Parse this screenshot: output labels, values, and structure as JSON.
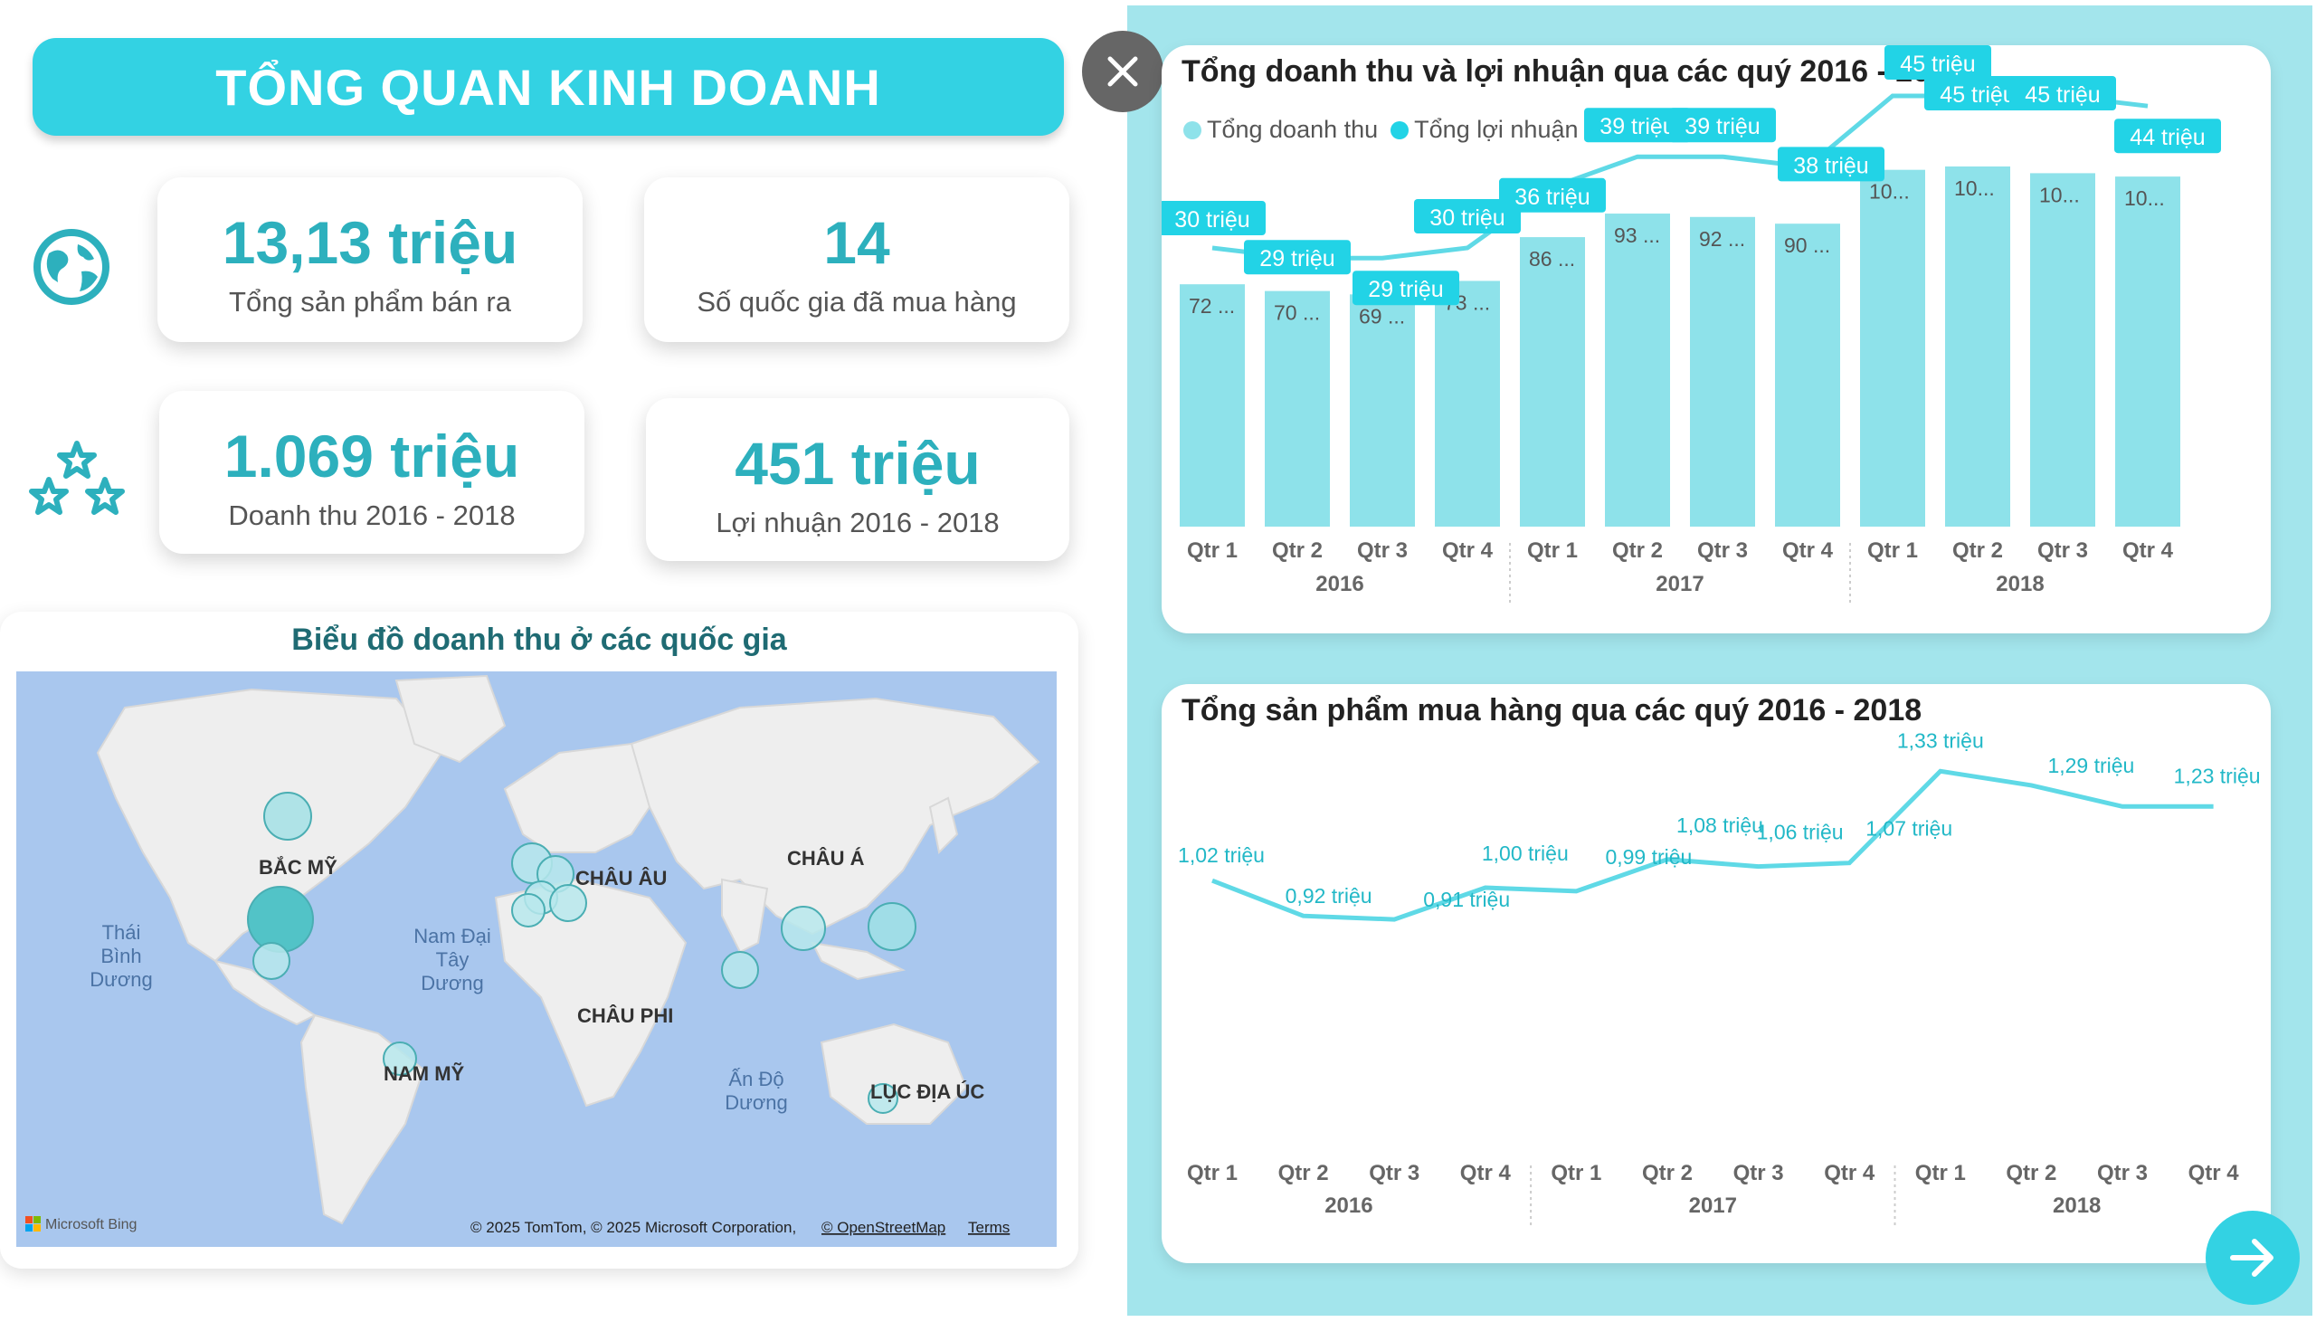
{
  "header": {
    "title": "TỔNG QUAN KINH DOANH"
  },
  "kpis": [
    {
      "value": "13,13 triệu",
      "label": "Tổng sản phẩm bán ra"
    },
    {
      "value": "14",
      "label": "Số quốc gia đã mua hàng"
    },
    {
      "value": "1.069 triệu",
      "label": "Doanh thu 2016 - 2018"
    },
    {
      "value": "451 triệu",
      "label": "Lợi nhuận 2016 - 2018"
    }
  ],
  "icons": {
    "globe": "globe-icon",
    "stars": "stars-icon",
    "close": "close-icon",
    "next": "arrow-right-icon"
  },
  "colors": {
    "accent": "#33d2e3",
    "bar": "#8ee2ea",
    "line": "#5fd9e6",
    "label_bg": "#22d3e6",
    "map_ocean": "#a9c7ee",
    "panel": "#a3e5ec"
  },
  "map": {
    "title": "Biểu đồ doanh thu ở các quốc gia",
    "labels": {
      "north_america": "BẮC MỸ",
      "europe": "CHÂU ÂU",
      "asia": "CHÂU Á",
      "africa": "CHÂU PHI",
      "south_america": "NAM MỸ",
      "australia": "LỤC ĐỊA ÚC",
      "pacific_1": "Thái",
      "pacific_2": "Bình",
      "pacific_3": "Dương",
      "atlantic_1": "Nam Đại",
      "atlantic_2": "Tây",
      "atlantic_3": "Dương",
      "indian_1": "Ấn Độ",
      "indian_2": "Dương"
    },
    "logo": "Microsoft Bing",
    "copyright": "© 2025 TomTom, © 2025 Microsoft Corporation,",
    "osm_link": "© OpenStreetMap",
    "terms_link": "Terms"
  },
  "chart_data": [
    {
      "type": "bar",
      "title": "Tổng doanh thu và lợi nhuận qua các quý 2016 - 2018",
      "legend": [
        "Tổng doanh thu",
        "Tổng lợi nhuận"
      ],
      "quarters": [
        "Qtr 1",
        "Qtr 2",
        "Qtr 3",
        "Qtr 4",
        "Qtr 1",
        "Qtr 2",
        "Qtr 3",
        "Qtr 4",
        "Qtr 1",
        "Qtr 2",
        "Qtr 3",
        "Qtr 4"
      ],
      "years": [
        "2016",
        "2017",
        "2018"
      ],
      "bar_values": [
        72,
        70,
        69,
        73,
        86,
        93,
        92,
        90,
        106,
        107,
        105,
        104
      ],
      "bar_labels": [
        "72 ...",
        "70 ...",
        "69 ...",
        "73 ...",
        "86 ...",
        "93 ...",
        "92 ...",
        "90 ...",
        "10...",
        "10...",
        "10...",
        "10..."
      ],
      "line_values": [
        30,
        29,
        29,
        30,
        36,
        39,
        39,
        38,
        45,
        45,
        45,
        44
      ],
      "line_labels": [
        "30 triệu",
        "29 triệu",
        "29 triệu",
        "30 triệu",
        "36 triệu",
        "39 triệu",
        "39 triệu",
        "38 triệu",
        "45 triệu",
        "45 triệu",
        "45 triệu",
        "44 triệu"
      ]
    },
    {
      "type": "line",
      "title": "Tổng sản phẩm mua hàng qua các quý 2016 - 2018",
      "quarters": [
        "Qtr 1",
        "Qtr 2",
        "Qtr 3",
        "Qtr 4",
        "Qtr 1",
        "Qtr 2",
        "Qtr 3",
        "Qtr 4",
        "Qtr 1",
        "Qtr 2",
        "Qtr 3",
        "Qtr 4"
      ],
      "years": [
        "2016",
        "2017",
        "2018"
      ],
      "values": [
        1.02,
        0.92,
        0.91,
        1.0,
        0.99,
        1.08,
        1.06,
        1.07,
        1.33,
        1.29,
        1.23,
        1.23
      ],
      "labels": [
        "1,02 triệu",
        "0,92 triệu",
        "0,91 triệu",
        "1,00 triệu",
        "0,99 triệu",
        "1,08 triệu",
        "1,06 triệu",
        "1,07 triệu",
        "1,33 triệu",
        "1,29 triệu",
        "",
        "1,23 triệu"
      ]
    }
  ]
}
